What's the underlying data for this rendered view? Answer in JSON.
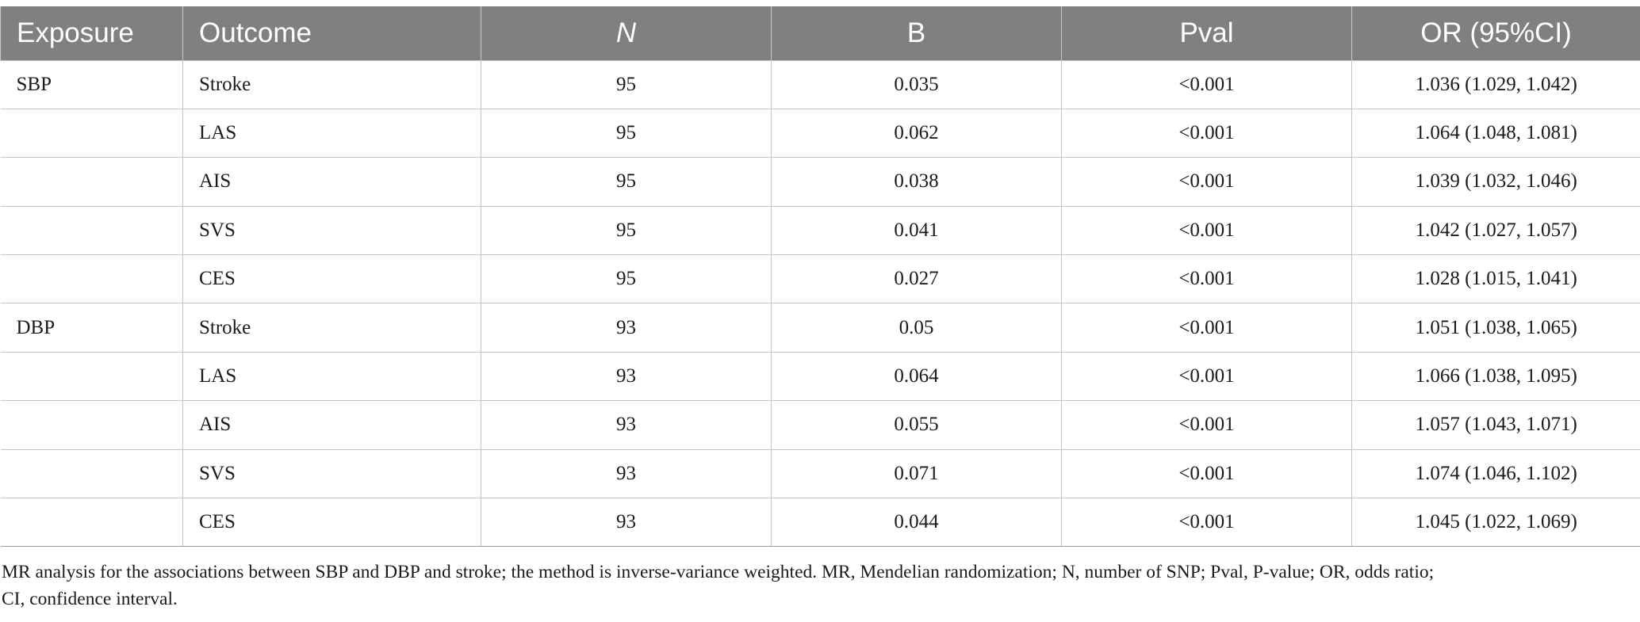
{
  "table": {
    "headers": {
      "exposure": "Exposure",
      "outcome": "Outcome",
      "n": "N",
      "b": "B",
      "pval": "Pval",
      "or": "OR (95%CI)"
    },
    "rows": [
      {
        "exposure": "SBP",
        "outcome": "Stroke",
        "n": "95",
        "b": "0.035",
        "pval": "<0.001",
        "or": "1.036 (1.029, 1.042)"
      },
      {
        "exposure": "",
        "outcome": "LAS",
        "n": "95",
        "b": "0.062",
        "pval": "<0.001",
        "or": "1.064 (1.048, 1.081)"
      },
      {
        "exposure": "",
        "outcome": "AIS",
        "n": "95",
        "b": "0.038",
        "pval": "<0.001",
        "or": "1.039 (1.032, 1.046)"
      },
      {
        "exposure": "",
        "outcome": "SVS",
        "n": "95",
        "b": "0.041",
        "pval": "<0.001",
        "or": "1.042 (1.027, 1.057)"
      },
      {
        "exposure": "",
        "outcome": "CES",
        "n": "95",
        "b": "0.027",
        "pval": "<0.001",
        "or": "1.028 (1.015, 1.041)"
      },
      {
        "exposure": "DBP",
        "outcome": "Stroke",
        "n": "93",
        "b": "0.05",
        "pval": "<0.001",
        "or": "1.051 (1.038, 1.065)"
      },
      {
        "exposure": "",
        "outcome": "LAS",
        "n": "93",
        "b": "0.064",
        "pval": "<0.001",
        "or": "1.066 (1.038, 1.095)"
      },
      {
        "exposure": "",
        "outcome": "AIS",
        "n": "93",
        "b": "0.055",
        "pval": "<0.001",
        "or": "1.057 (1.043, 1.071)"
      },
      {
        "exposure": "",
        "outcome": "SVS",
        "n": "93",
        "b": "0.071",
        "pval": "<0.001",
        "or": "1.074 (1.046, 1.102)"
      },
      {
        "exposure": "",
        "outcome": "CES",
        "n": "93",
        "b": "0.044",
        "pval": "<0.001",
        "or": "1.045 (1.022, 1.069)"
      }
    ]
  },
  "footnote": {
    "line1": "MR analysis for the associations between SBP and DBP and stroke; the method is inverse-variance weighted. MR, Mendelian randomization; N, number of SNP; Pval, P-value; OR, odds ratio;",
    "line2": "CI, confidence interval."
  },
  "colors": {
    "header_bg": "#808080",
    "header_text": "#ffffff",
    "grid": "#c4c4c4"
  }
}
